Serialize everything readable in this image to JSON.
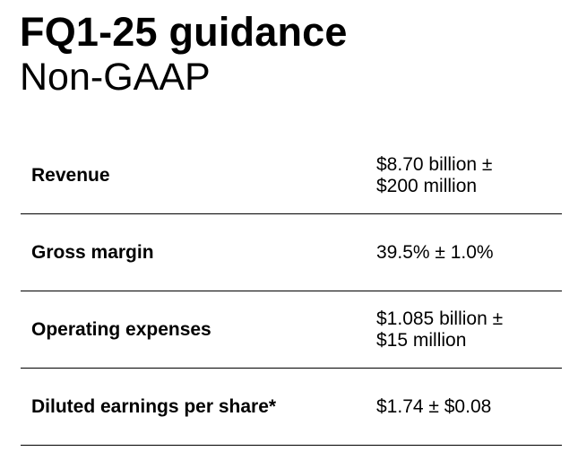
{
  "header": {
    "title": "FQ1-25 guidance",
    "subtitle": "Non-GAAP"
  },
  "guidance": {
    "rows": [
      {
        "label": "Revenue",
        "value_lines": [
          "$8.70 billion ±",
          "$200 million"
        ]
      },
      {
        "label": "Gross margin",
        "value_lines": [
          "39.5% ± 1.0%"
        ]
      },
      {
        "label": "Operating expenses",
        "value_lines": [
          "$1.085 billion ±",
          "$15 million"
        ]
      },
      {
        "label": "Diluted earnings per share*",
        "value_lines": [
          "$1.74 ± $0.08"
        ]
      }
    ]
  }
}
